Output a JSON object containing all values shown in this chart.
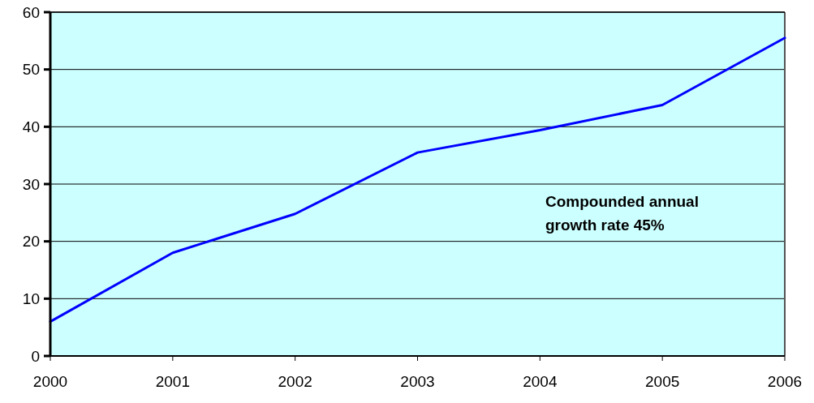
{
  "chart_data": {
    "type": "line",
    "x": [
      2000,
      2001,
      2002,
      2003,
      2004,
      2005,
      2006
    ],
    "series": [
      {
        "color": "#0000ff",
        "values": [
          6,
          18,
          24.8,
          35.5,
          39.4,
          43.8,
          55.5
        ]
      }
    ],
    "xlim": [
      2000,
      2006
    ],
    "xticks": [
      2000,
      2001,
      2002,
      2003,
      2004,
      2005,
      2006
    ],
    "ylim": [
      0,
      60
    ],
    "yticks": [
      0,
      10,
      20,
      30,
      40,
      50,
      60
    ],
    "grid": "y",
    "marker": "none",
    "line_style": "solid",
    "annotations": [
      "Compounded annual growth rate 45%"
    ]
  }
}
